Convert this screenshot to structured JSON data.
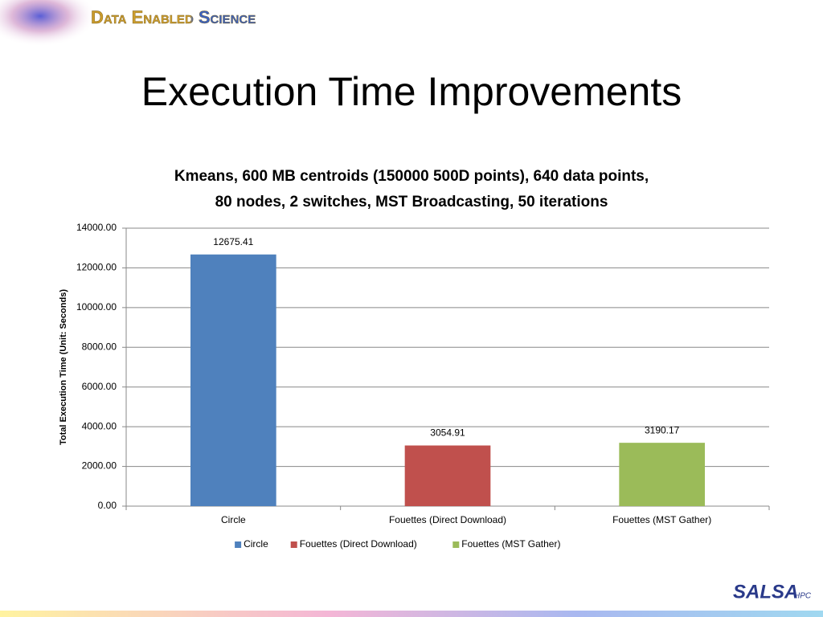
{
  "slide": {
    "header": "Data Enabled Science",
    "title": "Execution Time Improvements",
    "logo": "SALSA",
    "logo_sub": "HPC"
  },
  "chart_data": {
    "type": "bar",
    "title": [
      "Kmeans, 600 MB centroids (150000 500D points), 640 data points,",
      "80 nodes, 2 switches, MST Broadcasting, 50 iterations"
    ],
    "y_label": "Total Execution Time (Unit: Seconds)",
    "categories": [
      "Circle",
      "Fouettes (Direct Download)",
      "Fouettes (MST Gather)"
    ],
    "values": [
      12675.41,
      3054.91,
      3190.17
    ],
    "colors": [
      "#4f81bd",
      "#c0504d",
      "#9bbb59"
    ],
    "ylim": [
      0,
      14000
    ],
    "yticks": [
      {
        "value": 0,
        "label": "0.00"
      },
      {
        "value": 2000,
        "label": "2000.00"
      },
      {
        "value": 4000,
        "label": "4000.00"
      },
      {
        "value": 6000,
        "label": "6000.00"
      },
      {
        "value": 8000,
        "label": "8000.00"
      },
      {
        "value": 10000,
        "label": "10000.00"
      },
      {
        "value": 12000,
        "label": "12000.00"
      },
      {
        "value": 14000,
        "label": "14000.00"
      }
    ],
    "grid": true,
    "legend": "bottom"
  }
}
